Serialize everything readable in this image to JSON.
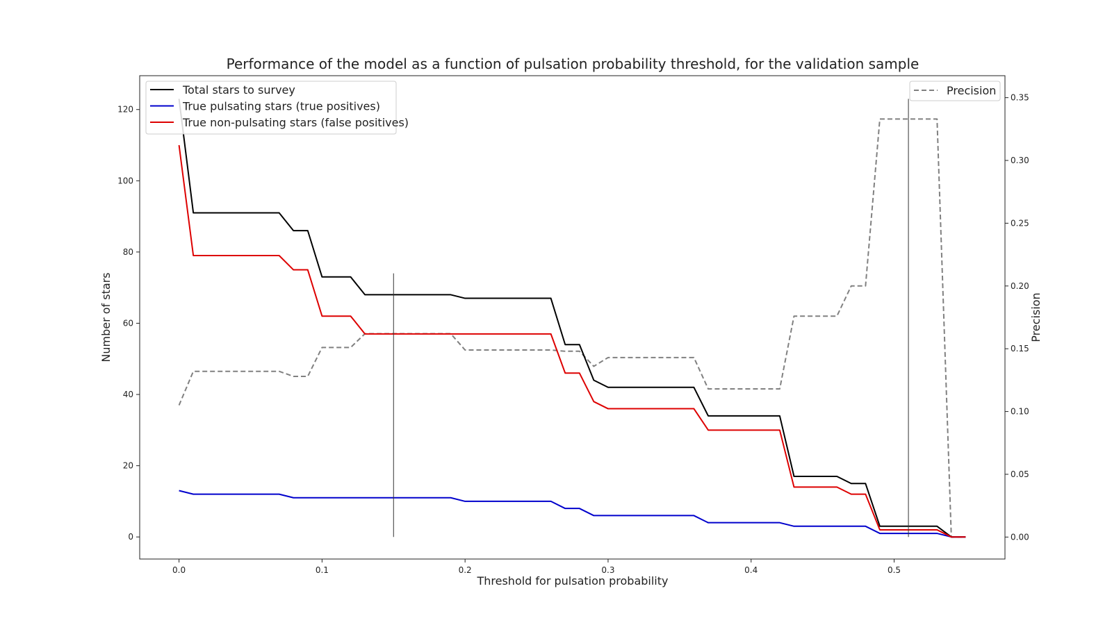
{
  "chart_data": {
    "type": "line",
    "title": "Performance of the model as a function of pulsation probability threshold, for the validation sample",
    "xlabel": "Threshold for pulsation probability",
    "ylabel": "Number of stars",
    "y2label": "Precision",
    "xlim": [
      -0.0275,
      0.5775
    ],
    "ylim": [
      -6.2,
      129.5
    ],
    "y2lim": [
      -0.0175,
      0.3675
    ],
    "xticks": [
      "0.0",
      "0.1",
      "0.2",
      "0.3",
      "0.4",
      "0.5"
    ],
    "yticks": [
      "0",
      "20",
      "40",
      "60",
      "80",
      "100",
      "120"
    ],
    "y2ticks": [
      "0.00",
      "0.05",
      "0.10",
      "0.15",
      "0.20",
      "0.25",
      "0.30",
      "0.35"
    ],
    "x": [
      0.0,
      0.01,
      0.02,
      0.03,
      0.04,
      0.05,
      0.06,
      0.07,
      0.08,
      0.09,
      0.1,
      0.11,
      0.12,
      0.13,
      0.14,
      0.15,
      0.16,
      0.17,
      0.18,
      0.19,
      0.2,
      0.21,
      0.22,
      0.23,
      0.24,
      0.25,
      0.26,
      0.27,
      0.28,
      0.29,
      0.3,
      0.31,
      0.32,
      0.33,
      0.34,
      0.35,
      0.36,
      0.37,
      0.38,
      0.39,
      0.4,
      0.41,
      0.42,
      0.43,
      0.44,
      0.45,
      0.46,
      0.47,
      0.48,
      0.49,
      0.5,
      0.51,
      0.52,
      0.53,
      0.54,
      0.55
    ],
    "series": [
      {
        "name": "Total stars to survey",
        "color": "#000000",
        "axis": "left",
        "style": "solid",
        "values": [
          123,
          91,
          91,
          91,
          91,
          91,
          91,
          91,
          86,
          86,
          73,
          73,
          73,
          68,
          68,
          68,
          68,
          68,
          68,
          68,
          67,
          67,
          67,
          67,
          67,
          67,
          67,
          54,
          54,
          44,
          42,
          42,
          42,
          42,
          42,
          42,
          42,
          34,
          34,
          34,
          34,
          34,
          34,
          17,
          17,
          17,
          17,
          15,
          15,
          3,
          3,
          3,
          3,
          3,
          0,
          0
        ]
      },
      {
        "name": "True pulsating stars (true positives)",
        "color": "#0000cc",
        "axis": "left",
        "style": "solid",
        "values": [
          13,
          12,
          12,
          12,
          12,
          12,
          12,
          12,
          11,
          11,
          11,
          11,
          11,
          11,
          11,
          11,
          11,
          11,
          11,
          11,
          10,
          10,
          10,
          10,
          10,
          10,
          10,
          8,
          8,
          6,
          6,
          6,
          6,
          6,
          6,
          6,
          6,
          4,
          4,
          4,
          4,
          4,
          4,
          3,
          3,
          3,
          3,
          3,
          3,
          1,
          1,
          1,
          1,
          1,
          0,
          0
        ]
      },
      {
        "name": "True non-pulsating stars (false positives)",
        "color": "#dd0000",
        "axis": "left",
        "style": "solid",
        "values": [
          110,
          79,
          79,
          79,
          79,
          79,
          79,
          79,
          75,
          75,
          62,
          62,
          62,
          57,
          57,
          57,
          57,
          57,
          57,
          57,
          57,
          57,
          57,
          57,
          57,
          57,
          57,
          46,
          46,
          38,
          36,
          36,
          36,
          36,
          36,
          36,
          36,
          30,
          30,
          30,
          30,
          30,
          30,
          14,
          14,
          14,
          14,
          12,
          12,
          2,
          2,
          2,
          2,
          2,
          0,
          0
        ]
      },
      {
        "name": "Precision",
        "color": "#808080",
        "axis": "right",
        "style": "dashed",
        "values": [
          0.105,
          0.132,
          0.132,
          0.132,
          0.132,
          0.132,
          0.132,
          0.132,
          0.128,
          0.128,
          0.151,
          0.151,
          0.151,
          0.162,
          0.162,
          0.162,
          0.162,
          0.162,
          0.162,
          0.162,
          0.149,
          0.149,
          0.149,
          0.149,
          0.149,
          0.149,
          0.149,
          0.148,
          0.148,
          0.136,
          0.143,
          0.143,
          0.143,
          0.143,
          0.143,
          0.143,
          0.143,
          0.118,
          0.118,
          0.118,
          0.118,
          0.118,
          0.118,
          0.176,
          0.176,
          0.176,
          0.176,
          0.2,
          0.2,
          0.333,
          0.333,
          0.333,
          0.333,
          0.333,
          0.0,
          0.0
        ]
      }
    ],
    "vlines": [
      {
        "x": 0.15,
        "ymin": 0,
        "ymax": 74
      },
      {
        "x": 0.51,
        "ymin": 0,
        "ymax": 123
      }
    ],
    "legend_left_placement": "upper-left",
    "legend_right_placement": "upper-right",
    "grid": false
  }
}
